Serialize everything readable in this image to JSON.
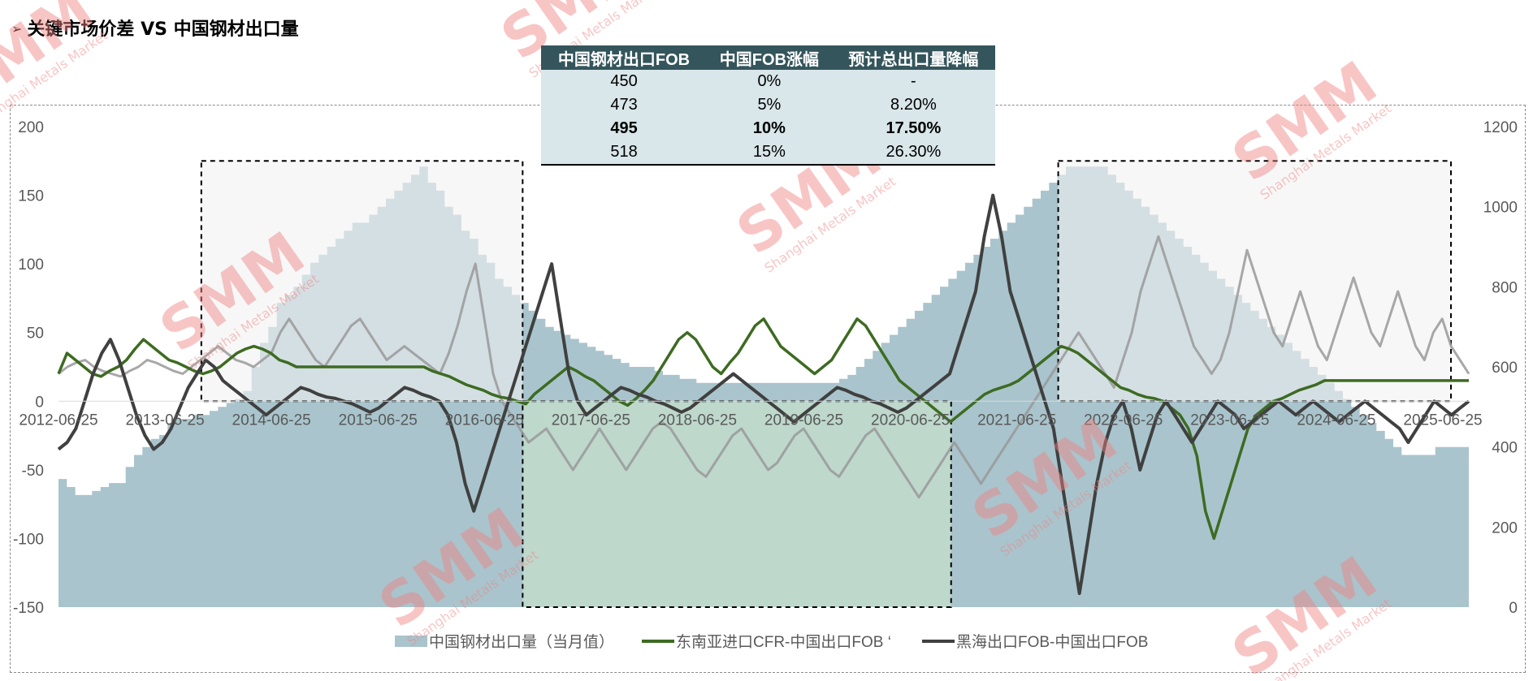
{
  "title": "关键市场价差 VS 中国钢材出口量",
  "title_marker": "➢",
  "table": {
    "headers": [
      "中国钢材出口FOB",
      "中国FOB涨幅",
      "预计总出口量降幅"
    ],
    "rows": [
      [
        "450",
        "0%",
        "-"
      ],
      [
        "473",
        "5%",
        "8.20%"
      ],
      [
        "495",
        "10%",
        "17.50%"
      ],
      [
        "518",
        "15%",
        "26.30%"
      ]
    ],
    "bold_row": 2
  },
  "watermark": {
    "text": "SMM",
    "sub": "Shanghai Metals Market",
    "color": "#f08080"
  },
  "chart_data": {
    "type": "line",
    "x_ticks": [
      "2012-06-25",
      "2013-06-25",
      "2014-06-25",
      "2015-06-25",
      "2016-06-25",
      "2017-06-25",
      "2018-06-25",
      "2019-06-25",
      "2020-06-25",
      "2021-06-25",
      "2022-06-25",
      "2023-06-25",
      "2024-06-25",
      "2025-06-25"
    ],
    "x_range": [
      "2012-07",
      "2025-09"
    ],
    "y_left": {
      "min": -150,
      "max": 200,
      "ticks": [
        -150,
        -100,
        -50,
        0,
        50,
        100,
        150,
        200
      ]
    },
    "y_right": {
      "min": 0,
      "max": 1200,
      "ticks": [
        0,
        200,
        400,
        600,
        800,
        1000,
        1200
      ]
    },
    "colors": {
      "bar": "#a9c4cc",
      "sea_line": "#3d6b22",
      "black_sea_line": "#404040",
      "highlight_fill": "#f2f2f2",
      "green_fill": "#c2dccb",
      "faded_line": "#999999",
      "faded_green": "#9fbb87"
    },
    "highlight_boxes": [
      {
        "from": "2013-11",
        "to": "2016-11",
        "y_from": 0,
        "y_to": 175
      },
      {
        "from": "2016-11",
        "to": "2020-11",
        "y_from": -150,
        "y_to": 0
      },
      {
        "from": "2021-11",
        "to": "2025-07",
        "y_from": 0,
        "y_to": 175
      }
    ],
    "series": [
      {
        "name": "中国钢材出口量（当月值）",
        "axis": "right",
        "kind": "area-step",
        "values": [
          320,
          300,
          280,
          280,
          290,
          300,
          310,
          310,
          350,
          380,
          400,
          420,
          430,
          460,
          470,
          470,
          480,
          480,
          490,
          500,
          510,
          520,
          540,
          600,
          660,
          700,
          760,
          780,
          800,
          830,
          860,
          880,
          900,
          920,
          940,
          960,
          960,
          980,
          1000,
          1020,
          1040,
          1060,
          1080,
          1100,
          1060,
          1040,
          1000,
          980,
          940,
          920,
          880,
          860,
          820,
          800,
          780,
          760,
          740,
          720,
          700,
          690,
          680,
          670,
          660,
          650,
          640,
          630,
          620,
          610,
          600,
          600,
          600,
          590,
          580,
          580,
          570,
          570,
          560,
          560,
          560,
          560,
          560,
          560,
          560,
          560,
          560,
          560,
          560,
          560,
          560,
          560,
          560,
          560,
          560,
          570,
          580,
          600,
          620,
          640,
          660,
          680,
          700,
          720,
          740,
          760,
          780,
          800,
          820,
          840,
          860,
          880,
          900,
          920,
          940,
          960,
          980,
          1000,
          1020,
          1040,
          1060,
          1080,
          1100,
          1100,
          1100,
          1100,
          1100,
          1080,
          1060,
          1040,
          1020,
          1000,
          980,
          960,
          940,
          920,
          900,
          880,
          860,
          840,
          820,
          800,
          780,
          760,
          740,
          720,
          700,
          680,
          660,
          640,
          620,
          600,
          580,
          560,
          540,
          520,
          500,
          480,
          460,
          440,
          420,
          400,
          380,
          380,
          380,
          380,
          400,
          400,
          400,
          400
        ]
      },
      {
        "name": "东南亚进口CFR-中国出口FOB",
        "axis": "left",
        "kind": "line",
        "values": [
          20,
          35,
          30,
          25,
          20,
          18,
          22,
          25,
          30,
          38,
          45,
          40,
          35,
          30,
          28,
          25,
          22,
          20,
          22,
          25,
          30,
          35,
          38,
          40,
          38,
          35,
          30,
          28,
          25,
          25,
          25,
          25,
          25,
          25,
          25,
          25,
          25,
          25,
          25,
          25,
          25,
          25,
          25,
          25,
          22,
          20,
          18,
          15,
          12,
          10,
          8,
          5,
          3,
          2,
          0,
          -2,
          5,
          10,
          15,
          20,
          25,
          22,
          18,
          15,
          10,
          5,
          0,
          -3,
          2,
          8,
          15,
          25,
          35,
          45,
          50,
          45,
          35,
          25,
          20,
          28,
          35,
          45,
          55,
          60,
          50,
          40,
          35,
          30,
          25,
          20,
          25,
          30,
          40,
          50,
          60,
          55,
          45,
          35,
          25,
          15,
          10,
          5,
          0,
          -5,
          -10,
          -15,
          -10,
          -5,
          0,
          5,
          8,
          10,
          12,
          15,
          20,
          25,
          30,
          35,
          40,
          38,
          35,
          30,
          25,
          20,
          15,
          10,
          8,
          5,
          3,
          2,
          0,
          -5,
          -10,
          -20,
          -40,
          -80,
          -100,
          -80,
          -60,
          -40,
          -20,
          -10,
          -5,
          0,
          2,
          5,
          8,
          10,
          12,
          15,
          15,
          15,
          15,
          15,
          15,
          15,
          15,
          15,
          15,
          15,
          15,
          15,
          15,
          15,
          15,
          15,
          15
        ]
      },
      {
        "name": "黑海出口FOB-中国出口FOB",
        "axis": "left",
        "kind": "line",
        "values": [
          -35,
          -30,
          -20,
          0,
          20,
          35,
          45,
          30,
          10,
          -10,
          -25,
          -35,
          -30,
          -20,
          -5,
          10,
          20,
          30,
          25,
          15,
          10,
          5,
          0,
          -5,
          -10,
          -5,
          0,
          5,
          10,
          8,
          5,
          3,
          2,
          0,
          -2,
          -5,
          -8,
          -5,
          0,
          5,
          10,
          8,
          5,
          3,
          0,
          -10,
          -30,
          -60,
          -80,
          -60,
          -40,
          -20,
          0,
          20,
          40,
          60,
          80,
          100,
          60,
          20,
          0,
          -10,
          -5,
          0,
          5,
          10,
          8,
          5,
          3,
          0,
          -2,
          -5,
          -8,
          -5,
          0,
          5,
          10,
          15,
          20,
          15,
          10,
          5,
          0,
          -5,
          -10,
          -15,
          -10,
          -5,
          0,
          5,
          10,
          8,
          5,
          3,
          0,
          -2,
          -5,
          -8,
          -5,
          0,
          5,
          10,
          15,
          20,
          40,
          60,
          80,
          120,
          150,
          120,
          80,
          60,
          40,
          20,
          0,
          -20,
          -60,
          -100,
          -140,
          -100,
          -60,
          -30,
          -10,
          0,
          -20,
          -50,
          -30,
          -10,
          0,
          -10,
          -20,
          -30,
          -20,
          -10,
          0,
          -5,
          -10,
          -20,
          -15,
          -10,
          -5,
          0,
          -5,
          -10,
          -5,
          0,
          -5,
          -10,
          -15,
          -10,
          -5,
          0,
          -5,
          -10,
          -15,
          -20,
          -30,
          -20,
          -10,
          0,
          -5,
          -10,
          -5,
          0
        ]
      },
      {
        "name": "faded-grey",
        "axis": "left",
        "kind": "line",
        "legend": false,
        "values": [
          20,
          25,
          28,
          30,
          25,
          22,
          20,
          18,
          22,
          25,
          30,
          28,
          25,
          22,
          20,
          25,
          30,
          35,
          40,
          35,
          30,
          28,
          25,
          30,
          35,
          50,
          60,
          50,
          40,
          30,
          25,
          35,
          45,
          55,
          60,
          50,
          40,
          30,
          35,
          40,
          35,
          30,
          25,
          20,
          35,
          55,
          80,
          100,
          60,
          20,
          0,
          -10,
          -20,
          -30,
          -25,
          -20,
          -30,
          -40,
          -50,
          -40,
          -30,
          -20,
          -30,
          -40,
          -50,
          -40,
          -30,
          -20,
          -15,
          -20,
          -30,
          -40,
          -50,
          -55,
          -45,
          -35,
          -25,
          -20,
          -30,
          -40,
          -50,
          -45,
          -35,
          -25,
          -20,
          -30,
          -40,
          -50,
          -55,
          -45,
          -35,
          -25,
          -20,
          -30,
          -40,
          -50,
          -60,
          -70,
          -60,
          -50,
          -40,
          -30,
          -40,
          -50,
          -60,
          -50,
          -40,
          -30,
          -20,
          -10,
          0,
          10,
          20,
          30,
          40,
          50,
          40,
          30,
          20,
          10,
          30,
          50,
          80,
          100,
          120,
          100,
          80,
          60,
          40,
          30,
          20,
          30,
          50,
          80,
          110,
          90,
          70,
          50,
          40,
          60,
          80,
          60,
          40,
          30,
          50,
          70,
          90,
          70,
          50,
          40,
          60,
          80,
          60,
          40,
          30,
          50,
          60,
          40,
          30,
          20
        ]
      }
    ],
    "legend": [
      {
        "label": "中国钢材出口量（当月值）",
        "type": "box",
        "color": "#a9c4cc"
      },
      {
        "label": "东南亚进口CFR-中国出口FOB ‘",
        "type": "line",
        "color": "#3d6b22"
      },
      {
        "label": "黑海出口FOB-中国出口FOB",
        "type": "line",
        "color": "#404040"
      }
    ]
  }
}
